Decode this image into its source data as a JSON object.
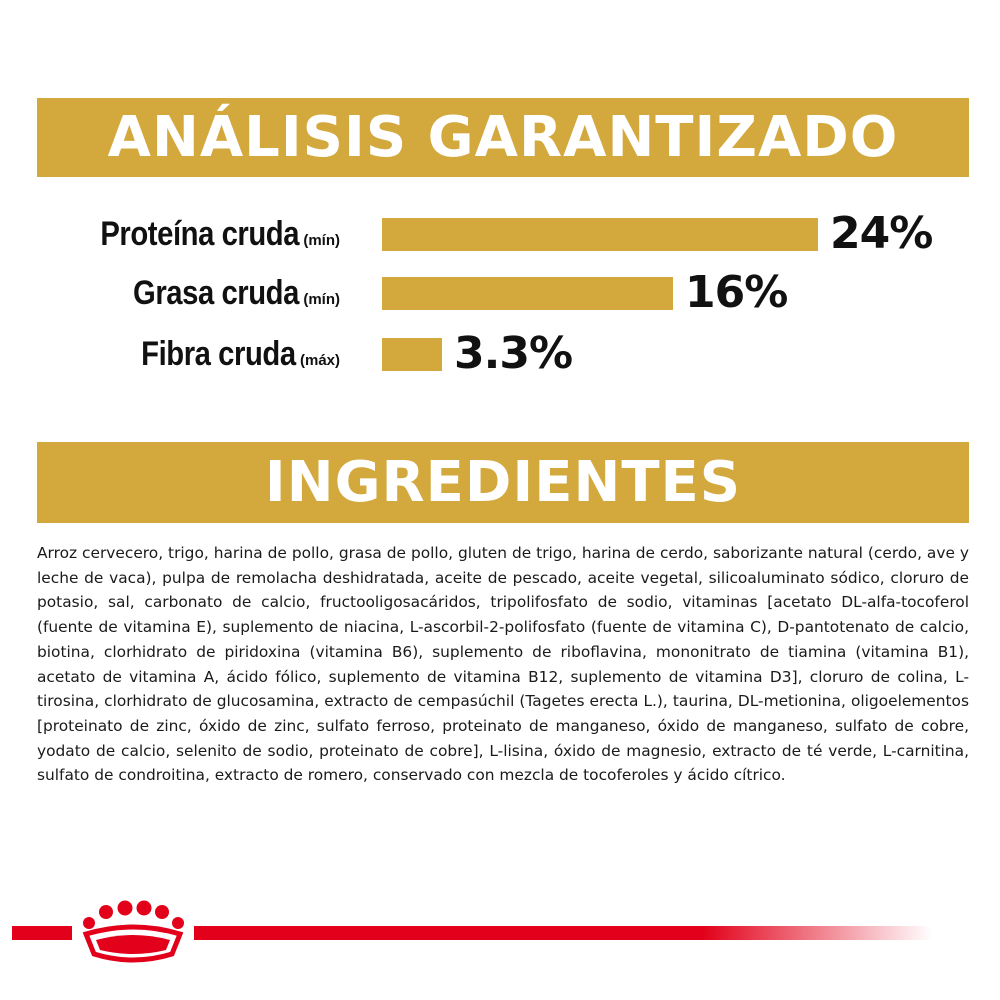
{
  "analysis": {
    "title": "ANÁLISIS GARANTIZADO",
    "rows": [
      {
        "name": "Proteína cruda",
        "qualifier": "(mín)",
        "value": "24%",
        "percent": 24
      },
      {
        "name": "Grasa cruda",
        "qualifier": "(mín)",
        "value": "16%",
        "percent": 16
      },
      {
        "name": "Fibra cruda",
        "qualifier": "(máx)",
        "value": "3.3%",
        "percent": 3.3
      }
    ]
  },
  "ingredients": {
    "title": "INGREDIENTES",
    "text": "Arroz cervecero, trigo, harina de pollo, grasa de pollo, gluten de trigo, harina de cerdo, saborizante natural (cerdo, ave y leche de vaca), pulpa de remolacha deshidratada, aceite de pescado, aceite vegetal, silicoaluminato sódico, cloruro de potasio, sal, carbonato de calcio, fructooligosacáridos, tripolifosfato de sodio, vitaminas [acetato DL-alfa-tocoferol (fuente de vitamina E), suplemento de niacina, L-ascorbil-2-polifosfato (fuente de vitamina C), D-pantotenato de calcio, biotina, clorhidrato de piridoxina (vitamina B6), suplemento de riboflavina, mononitrato de tiamina (vitamina B1), acetato de vitamina A, ácido fólico, suplemento de vitamina B12, suplemento de vitamina D3], cloruro de colina, L-tirosina, clorhidrato de glucosamina, extracto de cempasúchil (Tagetes erecta L.), taurina, DL-metionina, oligoelementos [proteinato de zinc, óxido de zinc, sulfato ferroso, proteinato de manganeso, óxido de manganeso, sulfato de cobre, yodato de calcio, selenito de sodio, proteinato de cobre], L-lisina, óxido de magnesio, extracto de té verde, L-carnitina, sulfato de condroitina, extracto de romero, conservado con mezcla de tocoferoles y ácido cítrico."
  },
  "colors": {
    "accent_gold": "#d3a83d",
    "brand_red": "#e2001a"
  },
  "footer": {
    "logo_icon": "royal-canin-crown-icon"
  }
}
